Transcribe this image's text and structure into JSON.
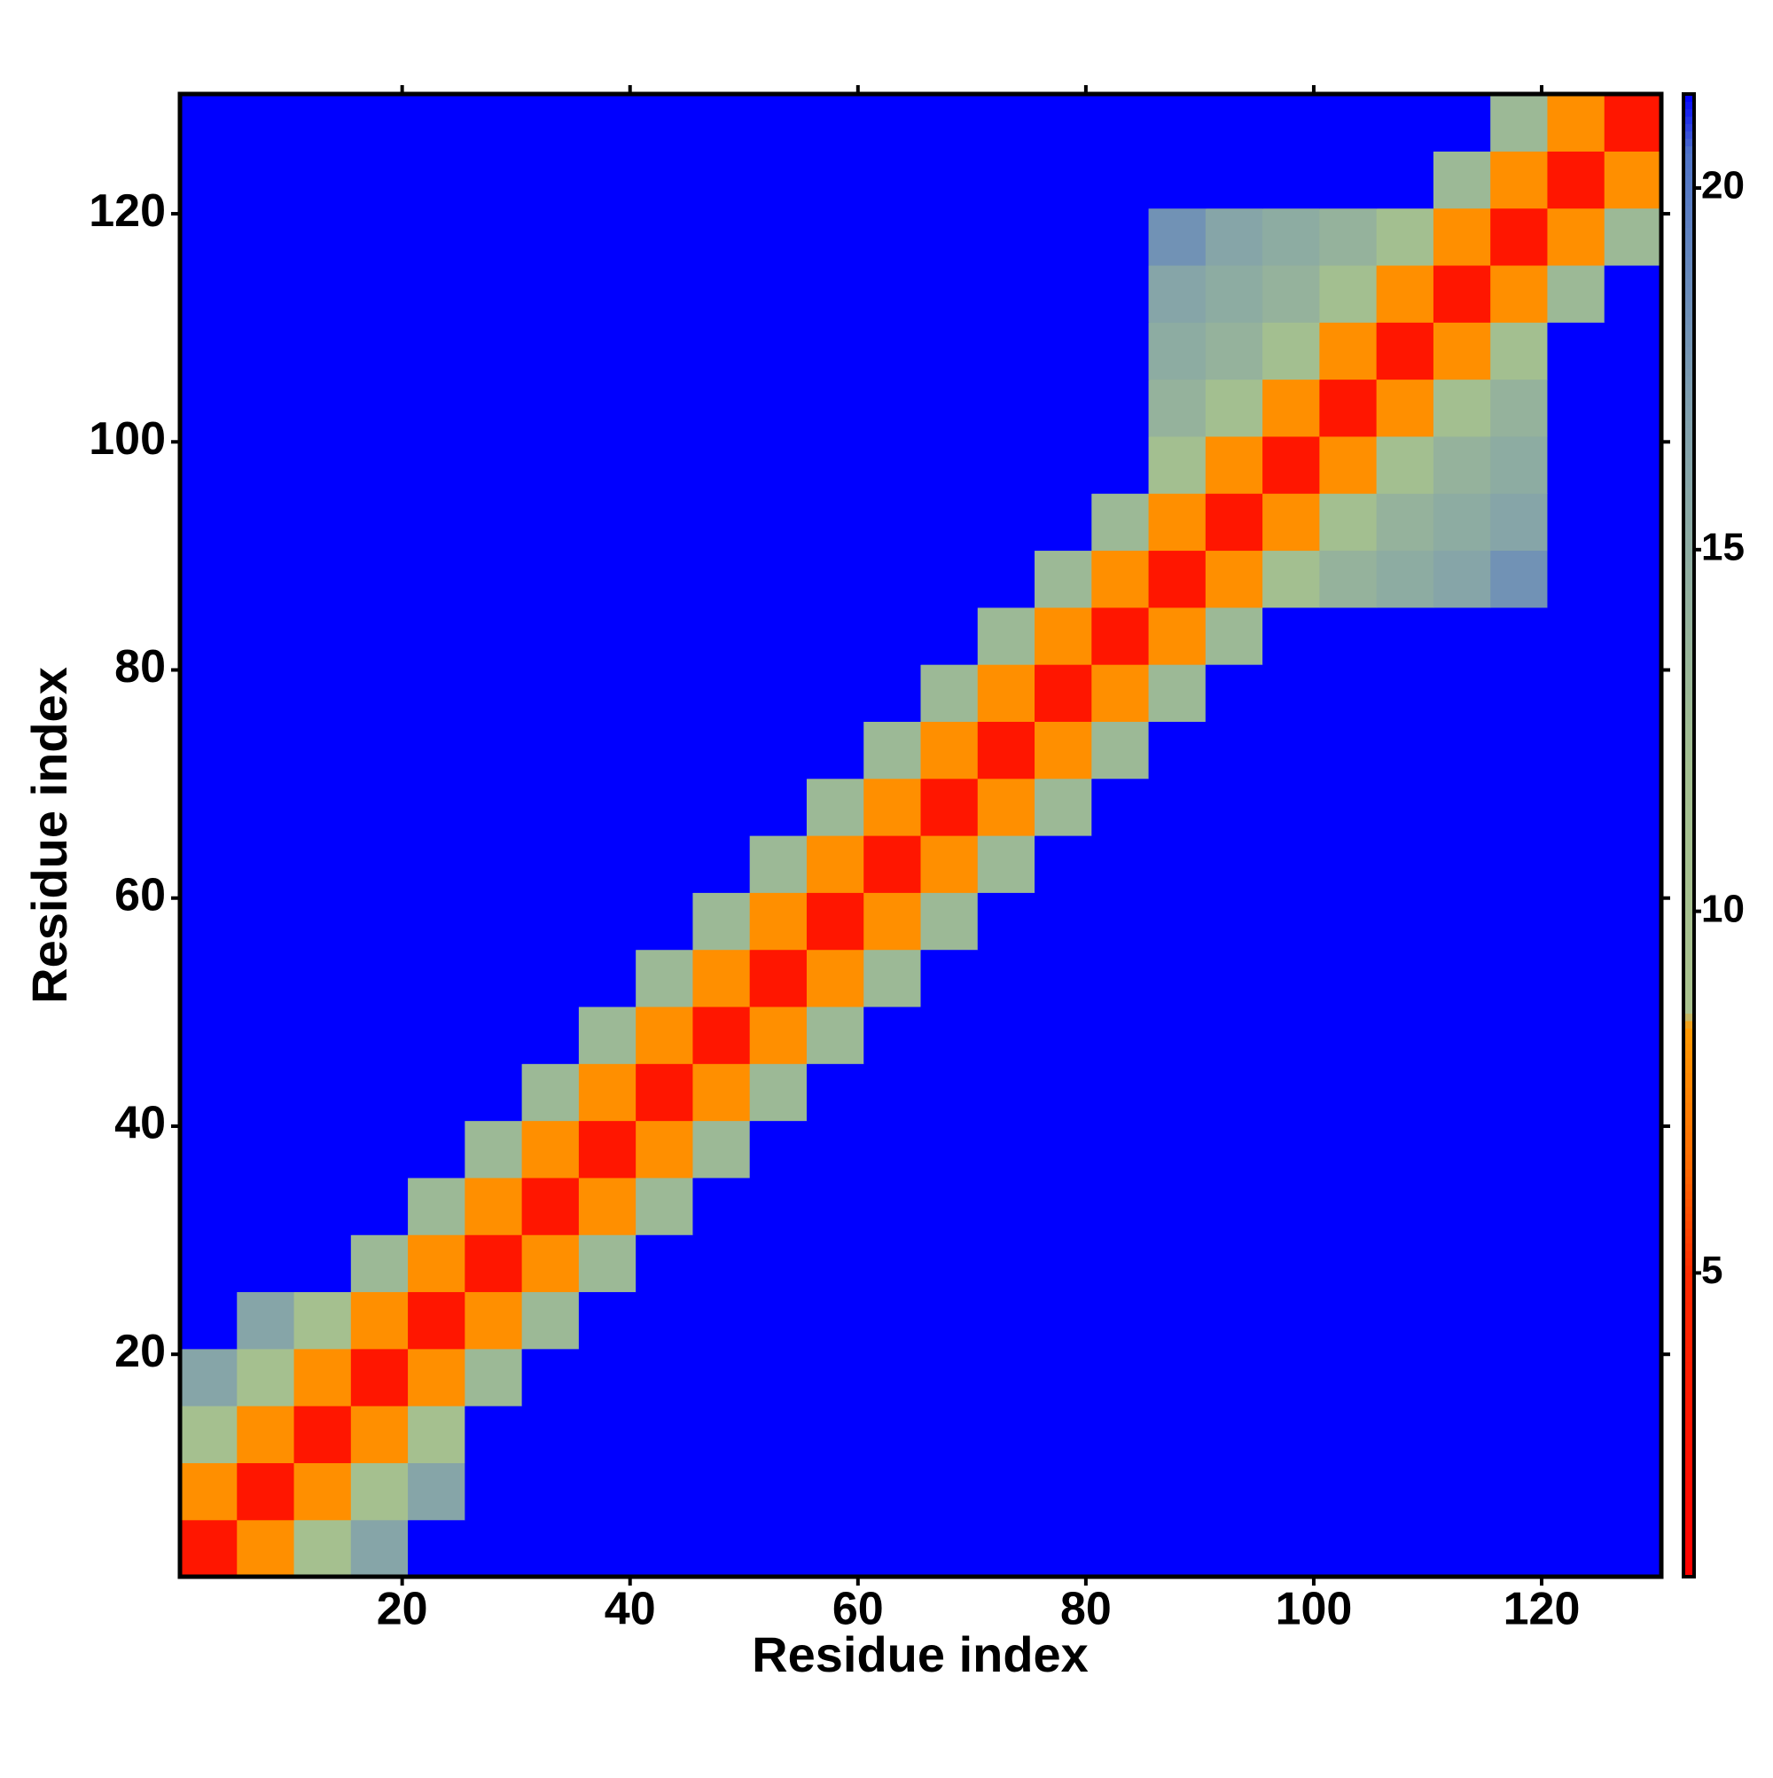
{
  "chart_data": {
    "type": "heatmap",
    "xlabel": "Residue index",
    "ylabel": "Residue index",
    "x": [
      3,
      8,
      13,
      18,
      23,
      28,
      33,
      38,
      43,
      48,
      53,
      58,
      63,
      68,
      73,
      78,
      83,
      88,
      93,
      98,
      103,
      108,
      113,
      118,
      123,
      128
    ],
    "y": [
      3,
      8,
      13,
      18,
      23,
      28,
      33,
      38,
      43,
      48,
      53,
      58,
      63,
      68,
      73,
      78,
      83,
      88,
      93,
      98,
      103,
      108,
      113,
      118,
      123,
      128
    ],
    "z": [
      [
        3,
        8,
        11,
        16,
        22,
        22,
        22,
        22,
        22,
        22,
        22,
        22,
        22,
        22,
        22,
        22,
        22,
        22,
        22,
        22,
        22,
        22,
        22,
        22,
        22,
        22
      ],
      [
        8,
        3,
        8,
        11,
        16,
        22,
        22,
        22,
        22,
        22,
        22,
        22,
        22,
        22,
        22,
        22,
        22,
        22,
        22,
        22,
        22,
        22,
        22,
        22,
        22,
        22
      ],
      [
        11,
        8,
        3,
        8,
        11,
        22,
        22,
        22,
        22,
        22,
        22,
        22,
        22,
        22,
        22,
        22,
        22,
        22,
        22,
        22,
        22,
        22,
        22,
        22,
        22,
        22
      ],
      [
        16,
        11,
        8,
        3,
        8,
        13,
        22,
        22,
        22,
        22,
        22,
        22,
        22,
        22,
        22,
        22,
        22,
        22,
        22,
        22,
        22,
        22,
        22,
        22,
        22,
        22
      ],
      [
        22,
        16,
        11,
        8,
        3,
        8,
        13,
        22,
        22,
        22,
        22,
        22,
        22,
        22,
        22,
        22,
        22,
        22,
        22,
        22,
        22,
        22,
        22,
        22,
        22,
        22
      ],
      [
        22,
        22,
        22,
        13,
        8,
        3,
        8,
        13,
        22,
        22,
        22,
        22,
        22,
        22,
        22,
        22,
        22,
        22,
        22,
        22,
        22,
        22,
        22,
        22,
        22,
        22
      ],
      [
        22,
        22,
        22,
        22,
        13,
        8,
        3,
        8,
        13,
        22,
        22,
        22,
        22,
        22,
        22,
        22,
        22,
        22,
        22,
        22,
        22,
        22,
        22,
        22,
        22,
        22
      ],
      [
        22,
        22,
        22,
        22,
        22,
        13,
        8,
        3,
        8,
        13,
        22,
        22,
        22,
        22,
        22,
        22,
        22,
        22,
        22,
        22,
        22,
        22,
        22,
        22,
        22,
        22
      ],
      [
        22,
        22,
        22,
        22,
        22,
        22,
        13,
        8,
        3,
        8,
        13,
        22,
        22,
        22,
        22,
        22,
        22,
        22,
        22,
        22,
        22,
        22,
        22,
        22,
        22,
        22
      ],
      [
        22,
        22,
        22,
        22,
        22,
        22,
        22,
        13,
        8,
        3,
        8,
        13,
        22,
        22,
        22,
        22,
        22,
        22,
        22,
        22,
        22,
        22,
        22,
        22,
        22,
        22
      ],
      [
        22,
        22,
        22,
        22,
        22,
        22,
        22,
        22,
        13,
        8,
        3,
        8,
        13,
        22,
        22,
        22,
        22,
        22,
        22,
        22,
        22,
        22,
        22,
        22,
        22,
        22
      ],
      [
        22,
        22,
        22,
        22,
        22,
        22,
        22,
        22,
        22,
        13,
        8,
        3,
        8,
        13,
        22,
        22,
        22,
        22,
        22,
        22,
        22,
        22,
        22,
        22,
        22,
        22
      ],
      [
        22,
        22,
        22,
        22,
        22,
        22,
        22,
        22,
        22,
        22,
        13,
        8,
        3,
        8,
        13,
        22,
        22,
        22,
        22,
        22,
        22,
        22,
        22,
        22,
        22,
        22
      ],
      [
        22,
        22,
        22,
        22,
        22,
        22,
        22,
        22,
        22,
        22,
        22,
        13,
        8,
        3,
        8,
        13,
        22,
        22,
        22,
        22,
        22,
        22,
        22,
        22,
        22,
        22
      ],
      [
        22,
        22,
        22,
        22,
        22,
        22,
        22,
        22,
        22,
        22,
        22,
        22,
        13,
        8,
        3,
        8,
        13,
        22,
        22,
        22,
        22,
        22,
        22,
        22,
        22,
        22
      ],
      [
        22,
        22,
        22,
        22,
        22,
        22,
        22,
        22,
        22,
        22,
        22,
        22,
        22,
        13,
        8,
        3,
        8,
        13,
        22,
        22,
        22,
        22,
        22,
        22,
        22,
        22
      ],
      [
        22,
        22,
        22,
        22,
        22,
        22,
        22,
        22,
        22,
        22,
        22,
        22,
        22,
        22,
        13,
        8,
        3,
        8,
        13,
        22,
        22,
        22,
        22,
        22,
        22,
        22
      ],
      [
        22,
        22,
        22,
        22,
        22,
        22,
        22,
        22,
        22,
        22,
        22,
        22,
        22,
        22,
        22,
        13,
        8,
        3,
        8,
        12,
        14,
        15,
        16,
        18,
        22,
        22
      ],
      [
        22,
        22,
        22,
        22,
        22,
        22,
        22,
        22,
        22,
        22,
        22,
        22,
        22,
        22,
        22,
        22,
        13,
        8,
        3,
        8,
        12,
        14,
        15,
        16,
        22,
        22
      ],
      [
        22,
        22,
        22,
        22,
        22,
        22,
        22,
        22,
        22,
        22,
        22,
        22,
        22,
        22,
        22,
        22,
        22,
        12,
        8,
        3,
        8,
        12,
        14,
        15,
        22,
        22
      ],
      [
        22,
        22,
        22,
        22,
        22,
        22,
        22,
        22,
        22,
        22,
        22,
        22,
        22,
        22,
        22,
        22,
        22,
        14,
        12,
        8,
        3,
        8,
        12,
        14,
        22,
        22
      ],
      [
        22,
        22,
        22,
        22,
        22,
        22,
        22,
        22,
        22,
        22,
        22,
        22,
        22,
        22,
        22,
        22,
        22,
        15,
        14,
        12,
        8,
        3,
        8,
        12,
        22,
        22
      ],
      [
        22,
        22,
        22,
        22,
        22,
        22,
        22,
        22,
        22,
        22,
        22,
        22,
        22,
        22,
        22,
        22,
        22,
        16,
        15,
        14,
        12,
        8,
        3,
        8,
        13,
        22
      ],
      [
        22,
        22,
        22,
        22,
        22,
        22,
        22,
        22,
        22,
        22,
        22,
        22,
        22,
        22,
        22,
        22,
        22,
        18,
        16,
        15,
        14,
        12,
        8,
        3,
        8,
        13
      ],
      [
        22,
        22,
        22,
        22,
        22,
        22,
        22,
        22,
        22,
        22,
        22,
        22,
        22,
        22,
        22,
        22,
        22,
        22,
        22,
        22,
        22,
        22,
        13,
        8,
        3,
        8
      ],
      [
        22,
        22,
        22,
        22,
        22,
        22,
        22,
        22,
        22,
        22,
        22,
        22,
        22,
        22,
        22,
        22,
        22,
        22,
        22,
        22,
        22,
        22,
        22,
        13,
        8,
        3
      ]
    ],
    "xlim": [
      0.5,
      130.5
    ],
    "ylim": [
      0.5,
      130.5
    ],
    "xticks": [
      20,
      40,
      60,
      80,
      100,
      120
    ],
    "yticks": [
      20,
      40,
      60,
      80,
      100,
      120
    ],
    "zlim": [
      0.8,
      21.3
    ],
    "zticks": [
      5,
      10,
      15,
      20
    ],
    "colorscale": [
      [
        0.8,
        "#ff0000"
      ],
      [
        5,
        "#ff2a00"
      ],
      [
        6.5,
        "#ff6a00"
      ],
      [
        8.4,
        "#ff9900"
      ],
      [
        8.6,
        "#a9c28e"
      ],
      [
        12,
        "#a3bf90"
      ],
      [
        17,
        "#7f9fae"
      ],
      [
        20.5,
        "#4f73c8"
      ],
      [
        21.3,
        "#0000ff"
      ]
    ]
  }
}
